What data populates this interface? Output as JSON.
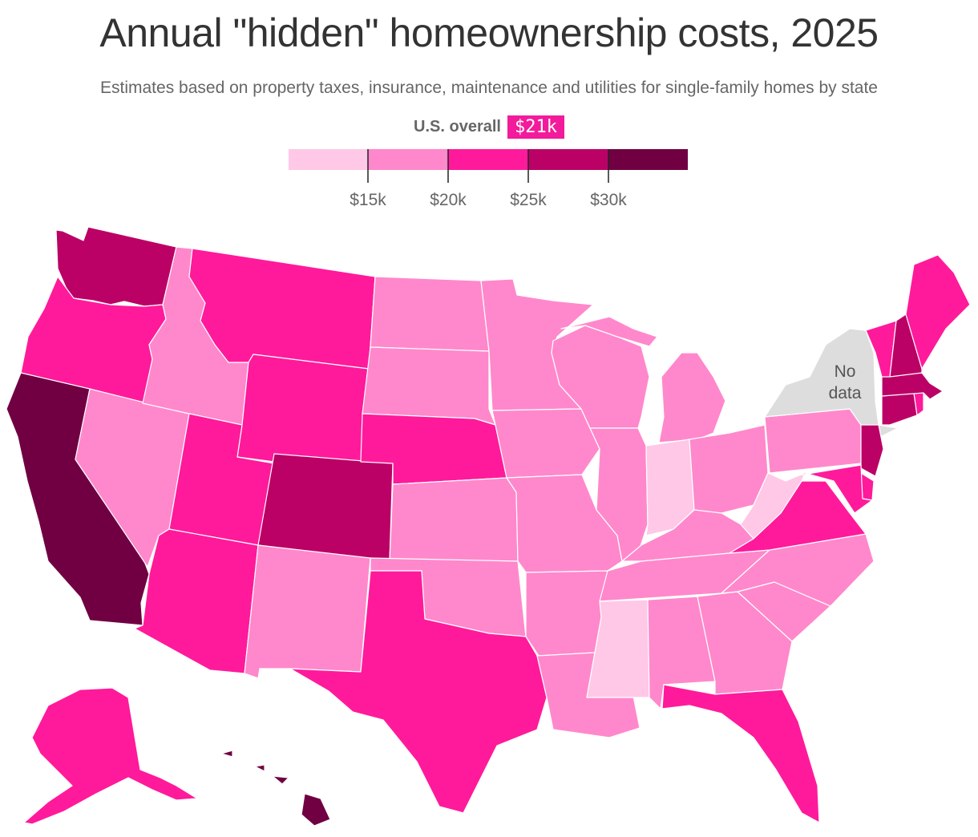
{
  "title": "Annual \"hidden\" homeownership costs, 2025",
  "subtitle": "Estimates based on property taxes, insurance, maintenance and utilities for single-family homes by state",
  "overall": {
    "label": "U.S. overall",
    "value": "$21k"
  },
  "legend": {
    "bins": [
      {
        "color": "#ffc8e6",
        "range": "< $15k"
      },
      {
        "color": "#ff88cc",
        "range": "$15k–$20k"
      },
      {
        "color": "#ff1a9b",
        "range": "$20k–$25k"
      },
      {
        "color": "#bb0066",
        "range": "$25k–$30k"
      },
      {
        "color": "#700042",
        "range": "> $30k"
      }
    ],
    "tick_labels": [
      "$15k",
      "$20k",
      "$25k",
      "$30k"
    ],
    "no_data_color": "#dddddd"
  },
  "no_data": {
    "line1": "No",
    "line2": "data"
  },
  "states": [
    {
      "id": "WA",
      "bin": 3
    },
    {
      "id": "OR",
      "bin": 2
    },
    {
      "id": "CA",
      "bin": 4
    },
    {
      "id": "NV",
      "bin": 1
    },
    {
      "id": "ID",
      "bin": 1
    },
    {
      "id": "MT",
      "bin": 2
    },
    {
      "id": "WY",
      "bin": 2
    },
    {
      "id": "UT",
      "bin": 2
    },
    {
      "id": "AZ",
      "bin": 2
    },
    {
      "id": "CO",
      "bin": 3
    },
    {
      "id": "NM",
      "bin": 1
    },
    {
      "id": "ND",
      "bin": 1
    },
    {
      "id": "SD",
      "bin": 1
    },
    {
      "id": "NE",
      "bin": 2
    },
    {
      "id": "KS",
      "bin": 1
    },
    {
      "id": "OK",
      "bin": 1
    },
    {
      "id": "TX",
      "bin": 2
    },
    {
      "id": "MN",
      "bin": 1
    },
    {
      "id": "IA",
      "bin": 1
    },
    {
      "id": "MO",
      "bin": 1
    },
    {
      "id": "AR",
      "bin": 1
    },
    {
      "id": "LA",
      "bin": 1
    },
    {
      "id": "WI",
      "bin": 1
    },
    {
      "id": "IL",
      "bin": 1
    },
    {
      "id": "MI",
      "bin": 1
    },
    {
      "id": "IN",
      "bin": 0
    },
    {
      "id": "OH",
      "bin": 1
    },
    {
      "id": "KY",
      "bin": 1
    },
    {
      "id": "TN",
      "bin": 1
    },
    {
      "id": "MS",
      "bin": 0
    },
    {
      "id": "AL",
      "bin": 1
    },
    {
      "id": "GA",
      "bin": 1
    },
    {
      "id": "FL",
      "bin": 2
    },
    {
      "id": "SC",
      "bin": 1
    },
    {
      "id": "NC",
      "bin": 1
    },
    {
      "id": "VA",
      "bin": 2
    },
    {
      "id": "WV",
      "bin": 0
    },
    {
      "id": "PA",
      "bin": 1
    },
    {
      "id": "NY",
      "bin": -1
    },
    {
      "id": "NJ",
      "bin": 3
    },
    {
      "id": "DE",
      "bin": 2
    },
    {
      "id": "MD",
      "bin": 2
    },
    {
      "id": "CT",
      "bin": 3
    },
    {
      "id": "RI",
      "bin": 2
    },
    {
      "id": "MA",
      "bin": 3
    },
    {
      "id": "VT",
      "bin": 2
    },
    {
      "id": "NH",
      "bin": 3
    },
    {
      "id": "ME",
      "bin": 2
    },
    {
      "id": "AK",
      "bin": 2
    },
    {
      "id": "HI",
      "bin": 4
    }
  ]
}
